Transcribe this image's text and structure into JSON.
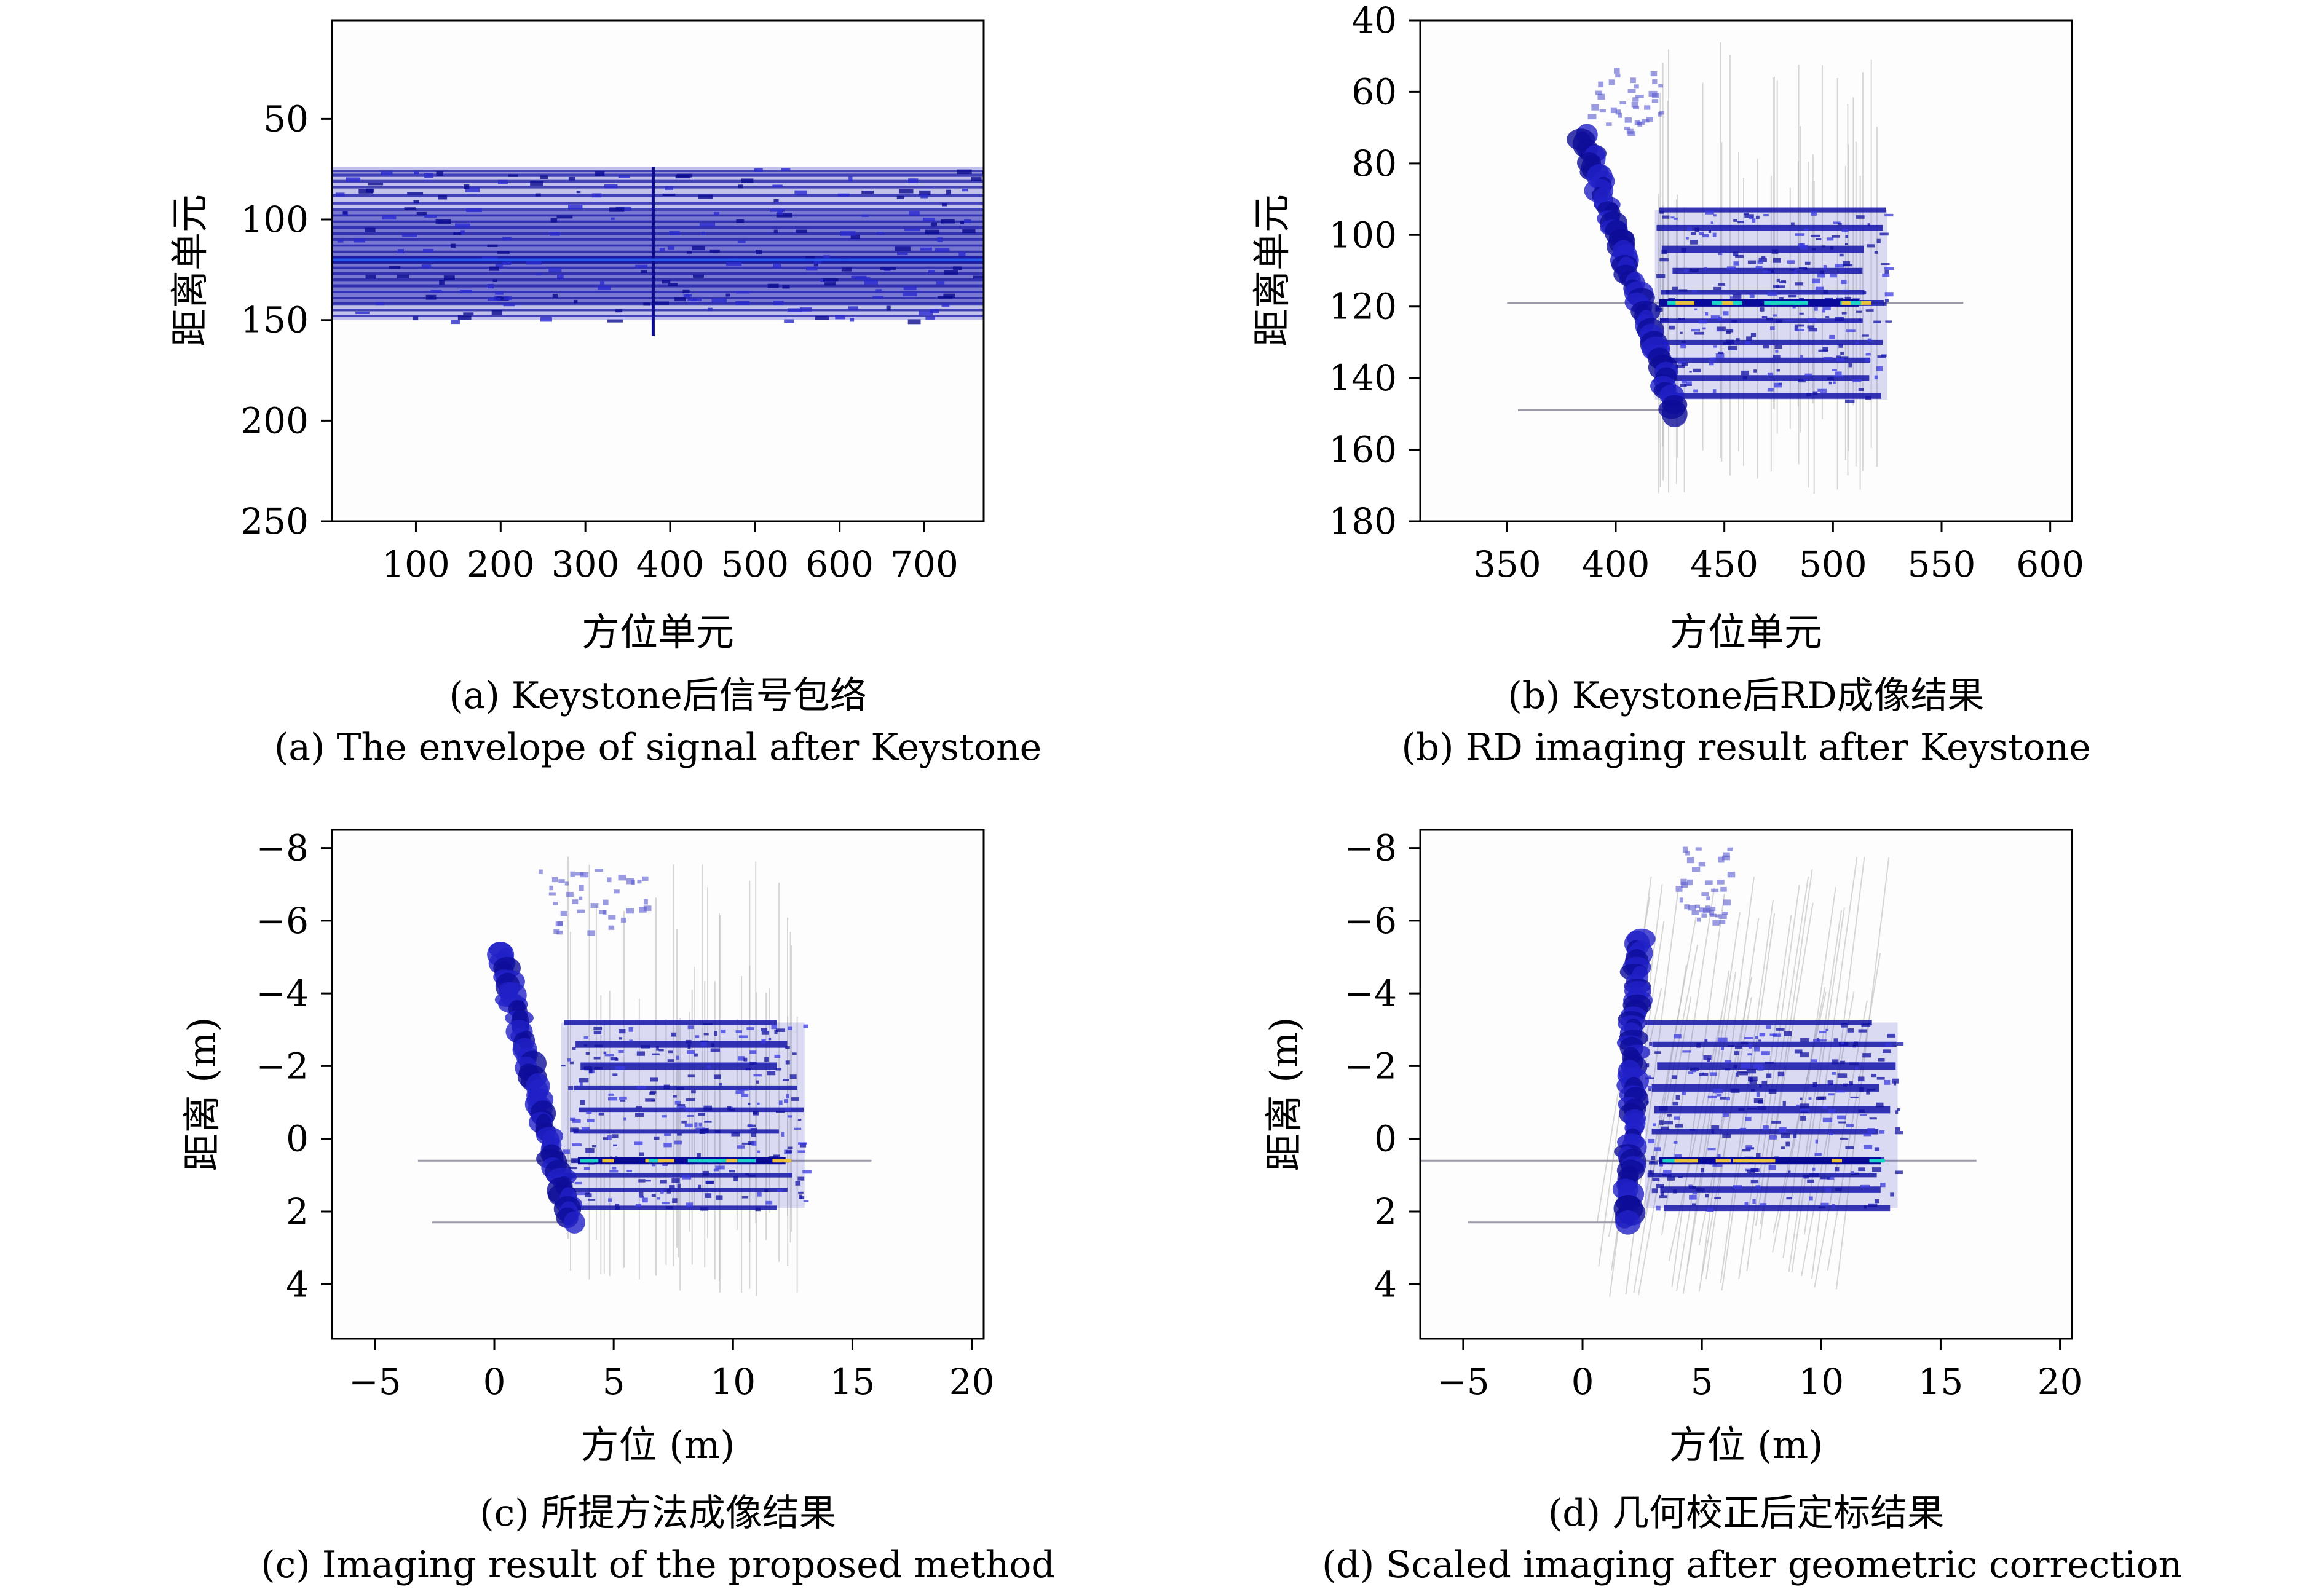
{
  "panels": [
    {
      "id": "a",
      "caption_cn": "(a) Keystone后信号包络",
      "caption_en": "(a) The envelope of signal after Keystone",
      "chart_data": {
        "type": "heatmap",
        "xlabel": "方位单元",
        "ylabel": "距离单元",
        "xlim": [
          1,
          770
        ],
        "ylim": [
          1,
          250
        ],
        "y_reversed": true,
        "xticks": [
          100,
          200,
          300,
          400,
          500,
          600,
          700
        ],
        "yticks": [
          50,
          100,
          150,
          200,
          250
        ],
        "bands": [
          {
            "y0": 74,
            "y1": 150,
            "x0": 1,
            "x1": 770,
            "shade": "light"
          },
          {
            "y0": 96,
            "y1": 142,
            "x0": 1,
            "x1": 770,
            "shade": "medium"
          },
          {
            "y0": 118,
            "y1": 122,
            "x0": 1,
            "x1": 770,
            "shade": "dark"
          }
        ],
        "vlines": [
          380
        ],
        "rows": [
          76,
          78,
          81,
          84,
          88,
          92,
          95,
          98,
          101,
          104,
          107,
          110,
          113,
          116,
          119,
          121,
          124,
          127,
          130,
          133,
          136,
          139,
          142,
          145,
          148
        ]
      }
    },
    {
      "id": "b",
      "caption_cn": "(b) Keystone后RD成像结果",
      "caption_en": "(b) RD imaging result after Keystone",
      "chart_data": {
        "type": "heatmap",
        "xlabel": "方位单元",
        "ylabel": "距离单元",
        "xlim": [
          310,
          610
        ],
        "ylim": [
          40,
          180
        ],
        "y_reversed": true,
        "xticks": [
          350,
          400,
          450,
          500,
          550,
          600
        ],
        "yticks": [
          40,
          60,
          80,
          100,
          120,
          140,
          160,
          180
        ],
        "diagonal": {
          "from": [
            385,
            72
          ],
          "to": [
            428,
            150
          ]
        },
        "plate": {
          "x0": 418,
          "x1": 525,
          "y0": 93,
          "y1": 146
        },
        "hot_row": 119,
        "hot_span": [
          420,
          512
        ],
        "rows": [
          93,
          98,
          104,
          110,
          116,
          119,
          124,
          130,
          135,
          140,
          145
        ],
        "flare_rows": [
          {
            "y": 119,
            "x0": 350,
            "x1": 560
          },
          {
            "y": 149,
            "x0": 355,
            "x1": 430
          }
        ]
      }
    },
    {
      "id": "c",
      "caption_cn": "(c) 所提方法成像结果",
      "caption_en": "(c) Imaging result of the proposed method",
      "chart_data": {
        "type": "heatmap",
        "xlabel": "方位 (m)",
        "ylabel": "距离 (m)",
        "xlim": [
          -6.8,
          20.5
        ],
        "ylim": [
          -8.5,
          5.5
        ],
        "y_reversed": true,
        "xticks": [
          -5,
          0,
          5,
          10,
          15,
          20
        ],
        "yticks": [
          -8,
          -6,
          -4,
          -2,
          0,
          2,
          4
        ],
        "diagonal": {
          "from": [
            0.2,
            -5.2
          ],
          "to": [
            3.2,
            2.3
          ]
        },
        "plate": {
          "x0": 2.8,
          "x1": 13.0,
          "y0": -3.2,
          "y1": 1.9
        },
        "hot_row": 0.6,
        "hot_span": [
          3.5,
          12.2
        ],
        "rows": [
          -3.2,
          -2.6,
          -2.0,
          -1.4,
          -0.8,
          -0.2,
          0.6,
          1.0,
          1.4,
          1.9
        ],
        "flare_rows": [
          {
            "y": 0.6,
            "x0": -3.2,
            "x1": 15.8
          },
          {
            "y": 2.3,
            "x0": -2.6,
            "x1": 3.2
          }
        ]
      }
    },
    {
      "id": "d",
      "caption_cn": "(d) 几何校正后定标结果",
      "caption_en": "(d) Scaled imaging after geometric correction",
      "chart_data": {
        "type": "heatmap",
        "xlabel": "方位 (m)",
        "ylabel": "距离 (m)",
        "xlim": [
          -6.8,
          20.5
        ],
        "ylim": [
          -8.5,
          5.5
        ],
        "y_reversed": true,
        "xticks": [
          -5,
          0,
          5,
          10,
          15,
          20
        ],
        "yticks": [
          -8,
          -6,
          -4,
          -2,
          0,
          2,
          4
        ],
        "diagonal": {
          "from": [
            2.3,
            -5.5
          ],
          "to": [
            1.9,
            2.3
          ]
        },
        "plate": {
          "x0": 2.6,
          "x1": 13.2,
          "y0": -3.2,
          "y1": 1.9
        },
        "hot_row": 0.6,
        "hot_span": [
          3.2,
          12.5
        ],
        "rows": [
          -3.2,
          -2.6,
          -2.0,
          -1.4,
          -0.8,
          -0.2,
          0.6,
          1.0,
          1.4,
          1.9
        ],
        "flare_rows": [
          {
            "y": 0.6,
            "x0": -6.8,
            "x1": 16.5
          },
          {
            "y": 2.3,
            "x0": -4.8,
            "x1": 2.3
          }
        ]
      }
    }
  ]
}
